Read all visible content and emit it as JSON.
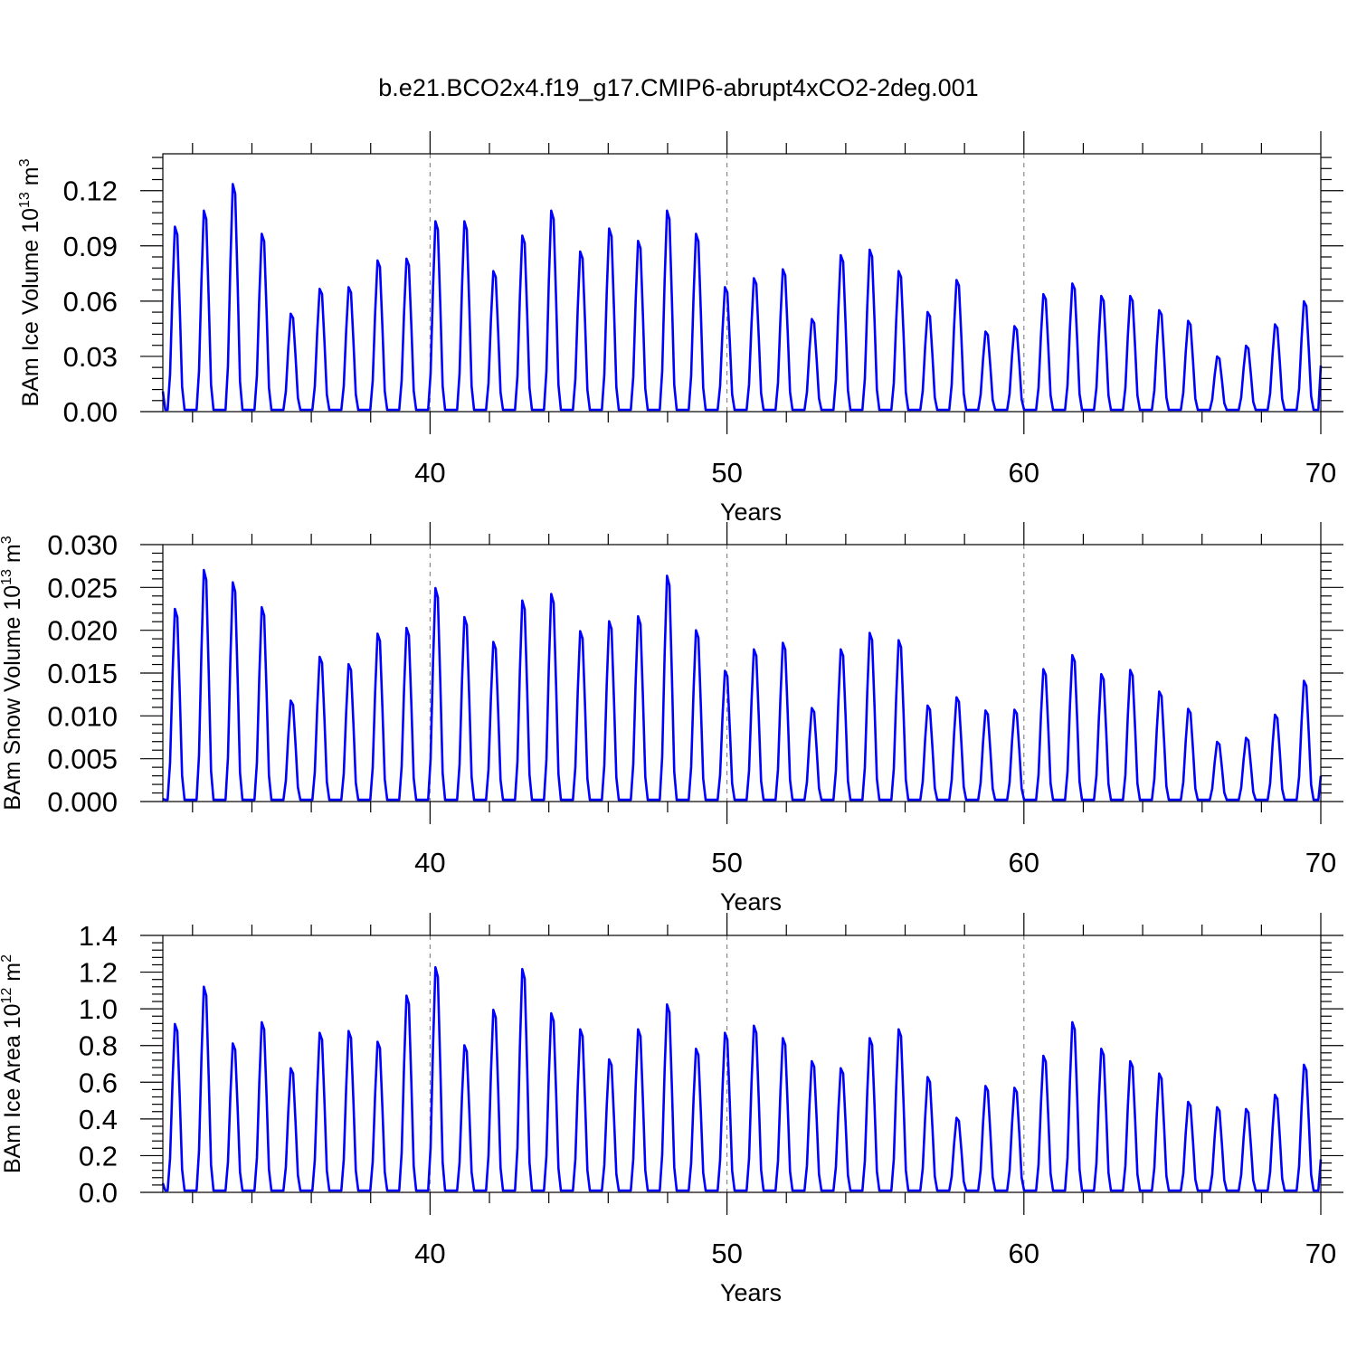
{
  "title": "b.e21.BCO2x4.f19_g17.CMIP6-abrupt4xCO2-2deg.001",
  "colors": {
    "series": "#0000ff",
    "grid": "#808080",
    "axis": "#000000"
  },
  "chart_data": [
    {
      "type": "line",
      "id": "ice-volume",
      "ylabel": "BAm Ice Volume 10",
      "ylabel_exp": "13",
      "ylabel_unit": " m",
      "ylabel_unit_exp": "3",
      "xlabel": "Years",
      "xlim": [
        31,
        70
      ],
      "ylim": [
        0,
        0.14
      ],
      "xticks": [
        40,
        50,
        60,
        70
      ],
      "xtick_labels": [
        "40",
        "50",
        "60",
        "70"
      ],
      "yticks": [
        0,
        0.03,
        0.06,
        0.09,
        0.12
      ],
      "ytick_labels": [
        "0.00",
        "0.03",
        "0.06",
        "0.09",
        "0.12"
      ],
      "grid_x": [
        40,
        50,
        60
      ],
      "min_value": 0.001,
      "first_value": 0.011,
      "last_value": 0.025,
      "annual_peaks": [
        0.104,
        0.113,
        0.128,
        0.1,
        0.055,
        0.069,
        0.07,
        0.085,
        0.086,
        0.107,
        0.107,
        0.079,
        0.099,
        0.113,
        0.09,
        0.103,
        0.096,
        0.113,
        0.1,
        0.07,
        0.075,
        0.08,
        0.052,
        0.088,
        0.091,
        0.079,
        0.056,
        0.074,
        0.045,
        0.048,
        0.066,
        0.072,
        0.065,
        0.065,
        0.057,
        0.051,
        0.031,
        0.037,
        0.049,
        0.062
      ]
    },
    {
      "type": "line",
      "id": "snow-volume",
      "ylabel": "BAm Snow Volume 10",
      "ylabel_exp": "13",
      "ylabel_unit": " m",
      "ylabel_unit_exp": "3",
      "xlabel": "Years",
      "xlim": [
        31,
        70
      ],
      "ylim": [
        0,
        0.03
      ],
      "xticks": [
        40,
        50,
        60,
        70
      ],
      "xtick_labels": [
        "40",
        "50",
        "60",
        "70"
      ],
      "yticks": [
        0,
        0.005,
        0.01,
        0.015,
        0.02,
        0.025,
        0.03
      ],
      "ytick_labels": [
        "0.000",
        "0.005",
        "0.010",
        "0.015",
        "0.020",
        "0.025",
        "0.030"
      ],
      "grid_x": [
        40,
        50,
        60
      ],
      "min_value": 0.0002,
      "first_value": 0.0003,
      "last_value": 0.003,
      "annual_peaks": [
        0.0233,
        0.028,
        0.0265,
        0.0235,
        0.0122,
        0.0175,
        0.0166,
        0.0203,
        0.021,
        0.0258,
        0.0223,
        0.0193,
        0.0243,
        0.0251,
        0.0206,
        0.0218,
        0.0224,
        0.0273,
        0.0207,
        0.0158,
        0.0184,
        0.0192,
        0.0113,
        0.0184,
        0.0204,
        0.0195,
        0.0116,
        0.0126,
        0.011,
        0.0111,
        0.016,
        0.0177,
        0.0154,
        0.0159,
        0.0133,
        0.0112,
        0.0072,
        0.0077,
        0.0105,
        0.0146
      ]
    },
    {
      "type": "line",
      "id": "ice-area",
      "ylabel": "BAm Ice Area 10",
      "ylabel_exp": "12",
      "ylabel_unit": " m",
      "ylabel_unit_exp": "2",
      "xlabel": "Years",
      "xlim": [
        31,
        70
      ],
      "ylim": [
        0,
        1.4
      ],
      "xticks": [
        40,
        50,
        60,
        70
      ],
      "xtick_labels": [
        "40",
        "50",
        "60",
        "70"
      ],
      "yticks": [
        0,
        0.2,
        0.4,
        0.6,
        0.8,
        1.0,
        1.2,
        1.4
      ],
      "ytick_labels": [
        "0.0",
        "0.2",
        "0.4",
        "0.6",
        "0.8",
        "1.0",
        "1.2",
        "1.4"
      ],
      "grid_x": [
        40,
        50,
        60
      ],
      "min_value": 0.01,
      "first_value": 0.05,
      "last_value": 0.18,
      "annual_peaks": [
        0.95,
        1.16,
        0.84,
        0.96,
        0.7,
        0.9,
        0.91,
        0.85,
        1.11,
        1.27,
        0.83,
        1.03,
        1.26,
        1.01,
        0.92,
        0.75,
        0.92,
        1.06,
        0.81,
        0.9,
        0.94,
        0.87,
        0.74,
        0.7,
        0.87,
        0.92,
        0.65,
        0.42,
        0.6,
        0.59,
        0.77,
        0.96,
        0.81,
        0.74,
        0.67,
        0.51,
        0.48,
        0.47,
        0.55,
        0.72
      ]
    }
  ]
}
